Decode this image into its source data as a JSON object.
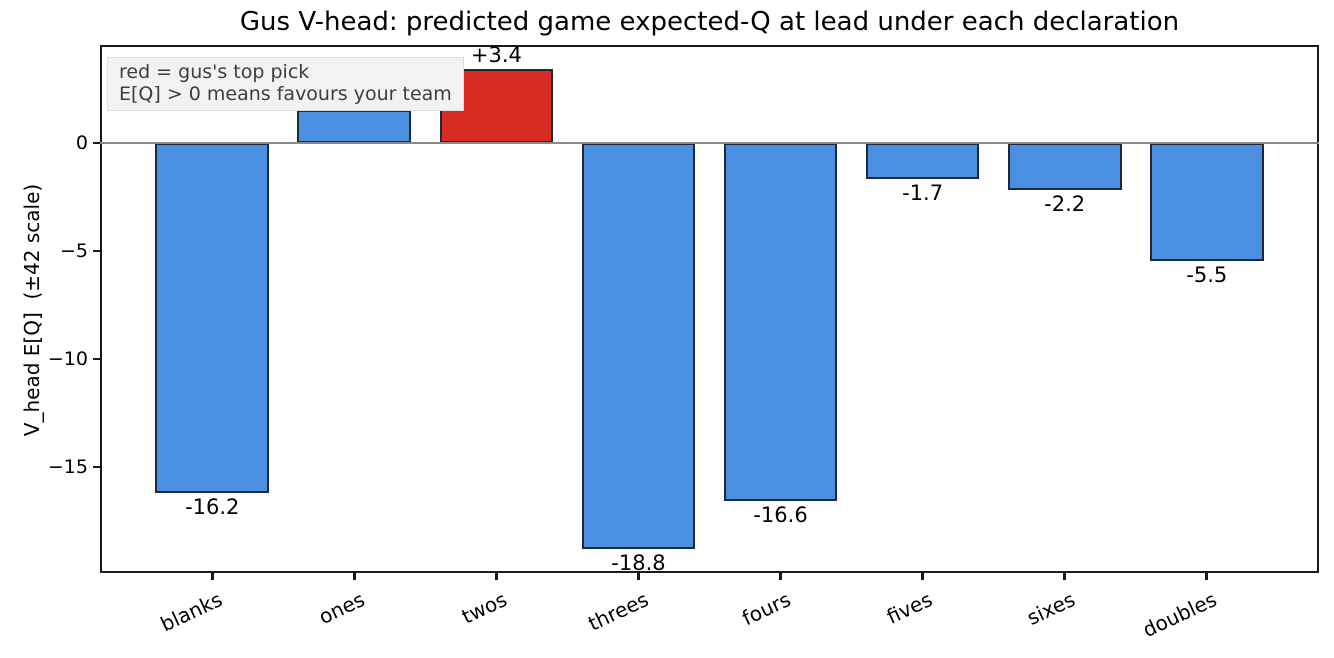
{
  "title": "Gus V-head: predicted game expected-Q at lead under each declaration",
  "annotation": {
    "line1": "red = gus's top pick",
    "line2": "E[Q] > 0 means favours your team"
  },
  "colors": {
    "bar": "#4a8fe2",
    "highlight": "#d62c24",
    "bar_edge": "#1f2937",
    "zero_line": "#8a8a8a",
    "spine": "#1a1a1a",
    "annotation_bg": "#f2f2f2",
    "annotation_text": "#3d3d3d",
    "background": "#ffffff"
  },
  "chart_data": {
    "type": "bar",
    "title": "Gus V-head: predicted game expected-Q at lead under each declaration",
    "xlabel": "",
    "ylabel": "V_head E[Q]  (±42 scale)",
    "categories": [
      "blanks",
      "ones",
      "twos",
      "threes",
      "fours",
      "fives",
      "sixes",
      "doubles"
    ],
    "values": [
      -16.2,
      1.5,
      3.4,
      -18.8,
      -16.6,
      -1.7,
      -2.2,
      -5.5
    ],
    "bar_labels": [
      "-16.2",
      "",
      "+3.4",
      "-18.8",
      "-16.6",
      "-1.7",
      "-2.2",
      "-5.5"
    ],
    "highlight_index": 2,
    "highlight_category": "twos",
    "ylim": [
      -19.91,
      4.51
    ],
    "yticks": [
      {
        "value": 0,
        "label": "0"
      },
      {
        "value": -5,
        "label": "−5"
      },
      {
        "value": -10,
        "label": "−10"
      },
      {
        "value": -15,
        "label": "−15"
      }
    ],
    "zero_line": true,
    "grid": false,
    "legend_position": "none",
    "annotation_lines": [
      "red = gus's top pick",
      "E[Q] > 0 means favours your team"
    ]
  }
}
